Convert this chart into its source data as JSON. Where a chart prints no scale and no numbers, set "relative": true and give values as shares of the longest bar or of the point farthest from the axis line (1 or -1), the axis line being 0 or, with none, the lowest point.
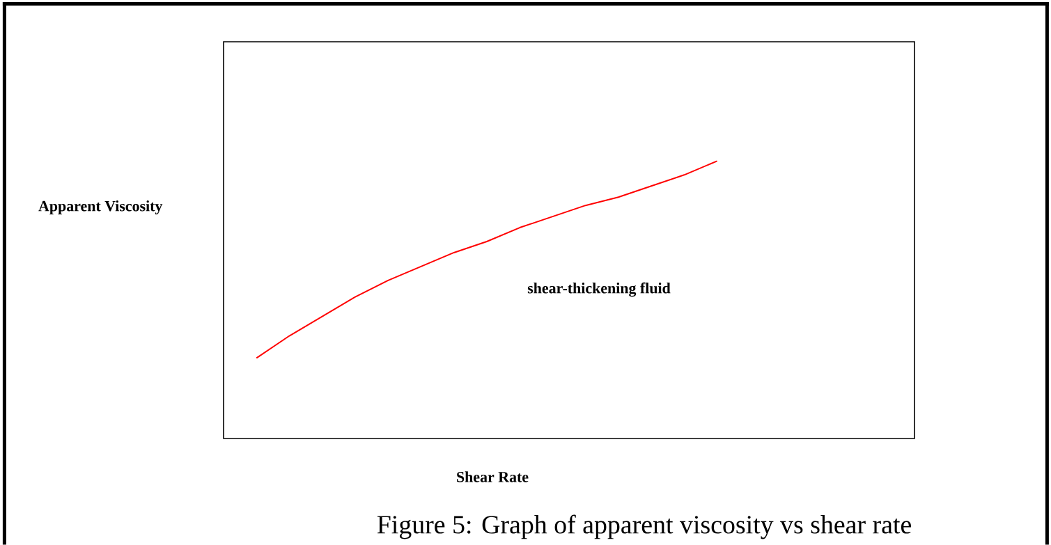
{
  "chart_data": {
    "type": "line",
    "relative": true,
    "xlabel": "Shear Rate",
    "ylabel": "Apparent Viscosity",
    "categories": [
      null,
      null,
      null,
      null,
      null,
      null,
      null,
      null,
      null,
      null,
      null,
      null,
      null,
      null,
      null,
      null,
      null,
      null,
      null,
      null
    ],
    "series": [
      {
        "color": "#ff0000",
        "values": [
          0.29,
          0.37,
          0.44,
          0.51,
          0.57,
          0.62,
          0.67,
          0.71,
          0.76,
          0.8,
          0.84,
          0.87,
          0.91,
          0.95,
          1.0,
          null,
          null,
          null,
          null,
          null
        ]
      }
    ],
    "annotations": [
      "shear-thickening fluid",
      "Figure 5: Graph of apparent viscosity vs shear rate"
    ]
  }
}
